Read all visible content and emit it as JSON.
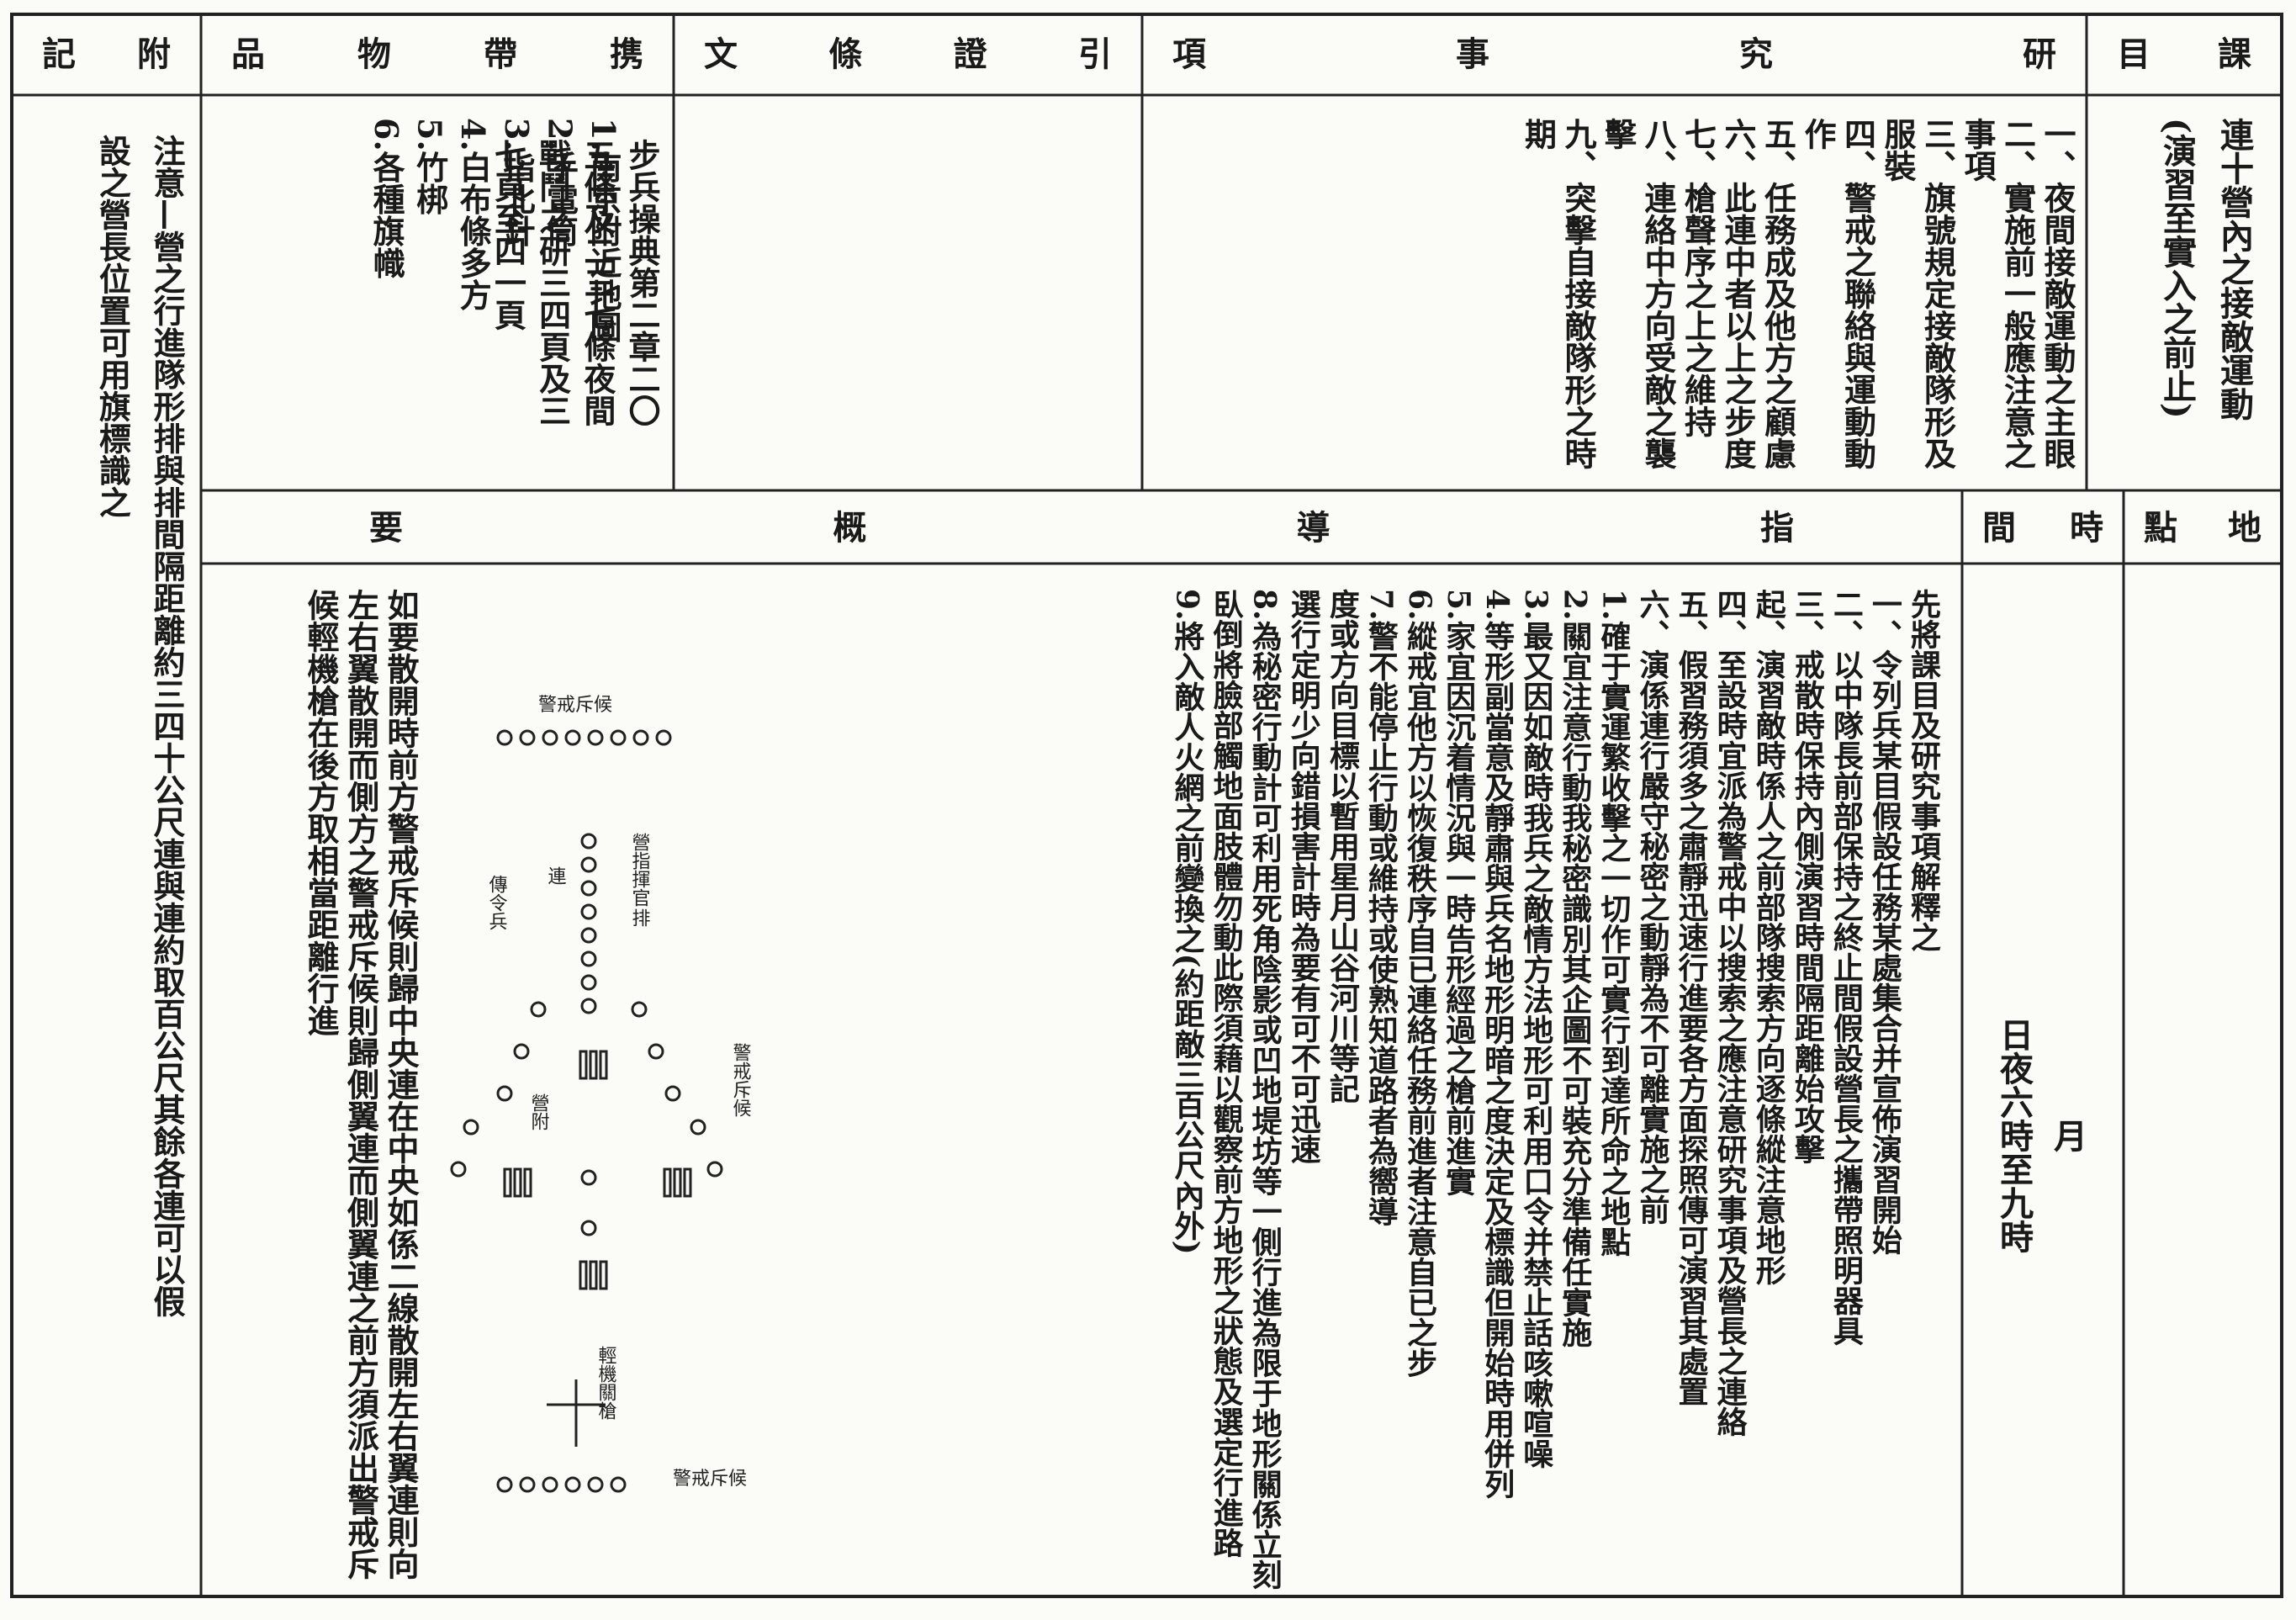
{
  "subject": {
    "heading": "課目",
    "lines": [
      "連十營內之接敵運動",
      "(演習至實入之前止)"
    ]
  },
  "research": {
    "heading": "研究事項",
    "items": [
      "一、夜間接敵運動之主眼",
      "二、實施前一般應注意之事項",
      "三、旗號規定接敵隊形及服裝",
      "四、警戒之聯絡與運動動作",
      "五、任務成及他方之顧慮",
      "六、此連中者以上之步度",
      "七、槍聲序之上之維持",
      "八、連絡中方向受敵之襲擊",
      "九、突擊自接敵隊形之時期"
    ]
  },
  "citations": {
    "heading": "引證條文",
    "lines": [
      "步兵操典第二章二〇",
      "五條及二三七條夜間",
      "戰鬥之研三四頁及三",
      "七頁至四一頁"
    ]
  },
  "items_carried": {
    "heading": "携帶物品",
    "items": [
      "1.南京附近地圖",
      "2.手電筒",
      "3.指北針",
      "4.白布條多方",
      "5.竹梆",
      "6.各種旗幟"
    ]
  },
  "remarks": {
    "heading": "附記",
    "lines": [
      "注意—營之行進隊形排與排間隔距離約三四十公尺連與連約取百公尺其餘各連可以假",
      "設之營長位置可用旗標識之"
    ]
  },
  "location": {
    "heading": "地點"
  },
  "time": {
    "heading": "時間",
    "lines": [
      "月",
      "日夜六時至九時"
    ]
  },
  "guidance": {
    "heading": "指導概要",
    "items": [
      "先將課目及研究事項解釋之",
      "一、令列兵某目假設任務某處集合并宣佈演習開始",
      "二、以中隊長前部保持之終止間假設營長之攜帶照明器具",
      "三、戒散時保持內側演習時間隔距離始攻擊",
      "起、演習敵時係人之前部隊搜索方向逐條縱注意地形",
      "四、至設時宜派為警戒中以搜索之應注意研究事項及營長之連絡",
      "五、假習務須多之肅靜迅速行進要各方面探照傳可演習其處置",
      "六、演係連行嚴守秘密之動靜為不可離實施之前",
      "1.確于實運繁收擊之一切作可實行到達所命之地點",
      "2.關宜注意行動我秘密識別其企圖不可裝充分準備任實施",
      "3.最又因如敵時我兵之敵情方法地形可利用口令并禁止話咳嗽喧噪",
      "4.等形副當意及靜肅與兵名地形明暗之度決定及標識但開始時用併列",
      "5.家宜因沉着情況與一時告形經過之槍前進實",
      "6.縱戒宜他方以恢復秩序自已連絡任務前進者注意自已之步",
      "7.警不能停止行動或維持或使熟知道路者為嚮導",
      "度或方向目標以暫用星月山谷河川等記",
      "選行定明少向錯損害計時為要有可不可迅速",
      "8.為秘密行動計可利用死角陰影或凹地堤坊等一側行進為限于地形關係立刻臥倒將臉部觸地面肢體勿動此際須藉以觀察前方地形之狀態及選定行進路",
      "9.將入敵人火網之前變換之(約距敵三百公尺內外)"
    ],
    "deploy_note": "如要散開時前方警戒斥候則歸中央連在中央如係二線散開左右翼連則向左右翼散開而側方之警戒斥候則歸側翼連而側翼連之前方須派出警戒斥候輕機槍在後方取相當距離行進",
    "diagram_labels": [
      "警戒斥候",
      "營指揮官",
      "傳令兵",
      "連",
      "排",
      "警戒斥候",
      "營附",
      "輕機關槍",
      "警戒斥候"
    ]
  }
}
